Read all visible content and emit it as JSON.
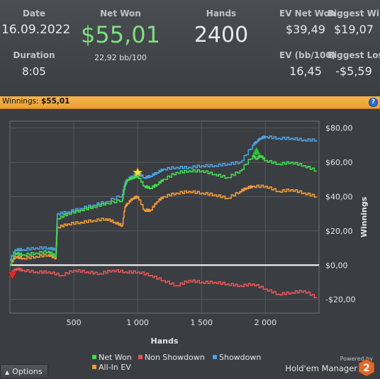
{
  "stats": {
    "date": {
      "label": "Date",
      "value": "16.09.2022"
    },
    "duration": {
      "label": "Duration",
      "value": "8:05"
    },
    "net_won": {
      "label": "Net Won",
      "value": "$55,01",
      "sub": "22,92 bb/100"
    },
    "hands": {
      "label": "Hands",
      "value": "2400"
    },
    "ev_net_won": {
      "label": "EV Net Won",
      "value": "$39,49"
    },
    "biggest_win": {
      "label": "Biggest Win",
      "value": "$19,07"
    },
    "ev_bb": {
      "label": "EV (bb/100)",
      "value": "16,45"
    },
    "biggest_loss": {
      "label": "Biggest Loss",
      "value": "-$5,59"
    }
  },
  "titlebar": {
    "label": "Winnings:",
    "value": "$55,01",
    "help": "?"
  },
  "chart_data": {
    "type": "line",
    "xlabel": "Hands",
    "ylabel": "Winnings",
    "xlim": [
      0,
      2420
    ],
    "ylim": [
      -28,
      84
    ],
    "x_ticks": [
      500,
      1000,
      1500,
      2000
    ],
    "x_tick_labels": [
      "500",
      "1 000",
      "1 500",
      "2 000"
    ],
    "y_ticks": [
      80,
      60,
      40,
      20,
      0,
      -20
    ],
    "y_tick_labels": [
      "$80,00",
      "$60,00",
      "$40,00",
      "$20,00",
      "$0,00",
      "-$20,00"
    ],
    "grid": true,
    "legend_position": "bottom",
    "series": [
      {
        "name": "Net Won",
        "color": "#3fd94f",
        "x": [
          0,
          40,
          100,
          200,
          300,
          360,
          370,
          450,
          550,
          650,
          750,
          880,
          900,
          920,
          960,
          1000,
          1050,
          1100,
          1150,
          1200,
          1300,
          1400,
          1500,
          1600,
          1700,
          1800,
          1900,
          1930,
          1960,
          2000,
          2100,
          2200,
          2300,
          2400
        ],
        "y": [
          0,
          7,
          6,
          7,
          8,
          5,
          27,
          30,
          32,
          34,
          36,
          38,
          46,
          50,
          51,
          52,
          46,
          45,
          47,
          50,
          54,
          55,
          55,
          53,
          51,
          55,
          64,
          62,
          64,
          61,
          59,
          60,
          58,
          55
        ]
      },
      {
        "name": "Non Showdown",
        "color": "#e05555",
        "x": [
          0,
          50,
          100,
          200,
          300,
          400,
          500,
          600,
          700,
          800,
          900,
          1000,
          1100,
          1200,
          1300,
          1400,
          1500,
          1600,
          1700,
          1800,
          1900,
          2000,
          2100,
          2200,
          2300,
          2400
        ],
        "y": [
          -5,
          -2,
          -3,
          -4,
          -4,
          -6,
          -3,
          -4,
          -5,
          -3,
          -4,
          -4,
          -6,
          -9,
          -12,
          -9,
          -10,
          -10,
          -11,
          -12,
          -11,
          -14,
          -17,
          -16,
          -15,
          -19
        ]
      },
      {
        "name": "Showdown",
        "color": "#4f9fe0",
        "x": [
          0,
          40,
          100,
          200,
          300,
          360,
          370,
          450,
          550,
          650,
          750,
          880,
          900,
          920,
          960,
          1000,
          1050,
          1100,
          1150,
          1200,
          1300,
          1400,
          1500,
          1600,
          1700,
          1800,
          1900,
          1930,
          1960,
          2000,
          2100,
          2200,
          2300,
          2400
        ],
        "y": [
          3,
          9,
          9,
          10,
          10,
          9,
          30,
          31,
          33,
          35,
          37,
          41,
          48,
          50,
          52,
          54,
          51,
          52,
          54,
          56,
          57,
          57,
          58,
          58,
          59,
          60,
          70,
          72,
          74,
          75,
          74,
          74,
          73,
          73
        ]
      },
      {
        "name": "All-In EV",
        "color": "#f0993a",
        "x": [
          0,
          40,
          100,
          200,
          300,
          360,
          370,
          450,
          550,
          650,
          750,
          820,
          880,
          900,
          920,
          960,
          1000,
          1050,
          1100,
          1150,
          1200,
          1300,
          1400,
          1500,
          1600,
          1700,
          1800,
          1850,
          1900,
          2000,
          2100,
          2200,
          2300,
          2400
        ],
        "y": [
          0,
          5,
          4,
          5,
          6,
          4,
          22,
          24,
          25,
          26,
          27,
          25,
          23,
          34,
          36,
          39,
          40,
          32,
          32,
          37,
          40,
          42,
          43,
          42,
          41,
          39,
          43,
          45,
          46,
          46,
          43,
          44,
          42,
          40
        ]
      }
    ],
    "markers": [
      {
        "type": "star",
        "x": 1000,
        "y": 54,
        "color": "#ffe23a"
      },
      {
        "type": "triangle-up",
        "x": 1930,
        "y": 66,
        "color": "#2fbf3c"
      },
      {
        "type": "triangle-down",
        "x": 20,
        "y": -6,
        "color": "#e02a2a"
      }
    ]
  },
  "legend": [
    {
      "name": "Net Won",
      "color": "#3fd94f"
    },
    {
      "name": "Non Showdown",
      "color": "#e05555"
    },
    {
      "name": "Showdown",
      "color": "#4f9fe0"
    },
    {
      "name": "All-In EV",
      "color": "#f0993a"
    }
  ],
  "footer": {
    "options_label": "Options",
    "powered_by": "Powered by",
    "brand": "Hold'em Manager",
    "brand_number": "2"
  }
}
